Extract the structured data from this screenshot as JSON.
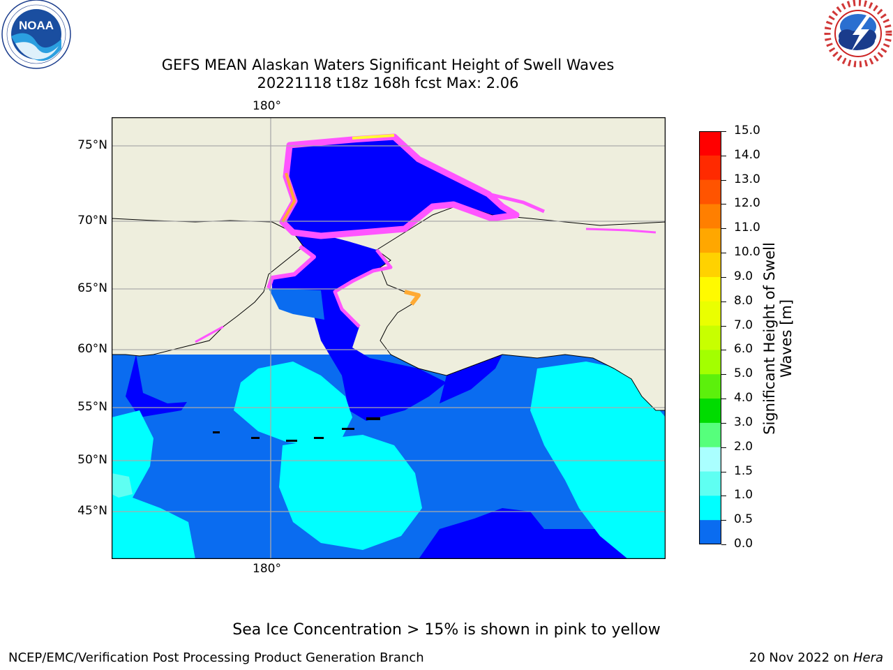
{
  "header": {
    "title_line1": "GEFS MEAN Alaskan Waters Significant Height of Swell Waves",
    "title_line2": "20221118 t18z 168h fcst   Max: 2.06"
  },
  "logos": {
    "noaa": {
      "text": "NOAA",
      "ring_text": "NATIONAL OCEANIC AND ATMOSPHERIC ADMINISTRATION · U.S. DEPARTMENT OF COMMERCE"
    },
    "nws": {
      "ring_text": "NATIONAL WEATHER SERVICE"
    }
  },
  "map": {
    "longitude_label": "180°",
    "latitude_labels": [
      {
        "text": "75°N",
        "value": 75
      },
      {
        "text": "70°N",
        "value": 70
      },
      {
        "text": "65°N",
        "value": 65
      },
      {
        "text": "60°N",
        "value": 60
      },
      {
        "text": "55°N",
        "value": 55
      },
      {
        "text": "50°N",
        "value": 50
      },
      {
        "text": "45°N",
        "value": 45
      }
    ],
    "colors": {
      "ocean_0_0.5": "#0000ff",
      "ocean_0.5_1.0": "#0a6cf0",
      "ocean_1.0_1.5": "#00ffff",
      "ocean_1.5_2.0": "#5ffff2",
      "land": "#eeeedd",
      "sea_ice_pink": "#ff55ff",
      "sea_ice_yellow": "#ffff33",
      "grid": "#aaaaaa"
    }
  },
  "colorbar": {
    "label": "Significant Height of Swell Waves [m]",
    "label_line1": "Significant Height of Swell",
    "label_line2": "Waves [m]",
    "ticks": [
      "15.0",
      "14.0",
      "13.0",
      "12.0",
      "11.0",
      "10.0",
      "9.0",
      "8.0",
      "7.0",
      "6.0",
      "5.0",
      "4.0",
      "3.0",
      "2.0",
      "1.5",
      "1.0",
      "0.5",
      "0.0"
    ],
    "colors": [
      "#ff0000",
      "#ff2a00",
      "#ff5400",
      "#ff7f00",
      "#ffa700",
      "#ffd200",
      "#fffa00",
      "#eaff00",
      "#c8ff00",
      "#a3ff00",
      "#5cf00c",
      "#00dc00",
      "#56ff7c",
      "#aaffff",
      "#5ffff2",
      "#00ffff",
      "#0a6cf0",
      "#0000ff"
    ]
  },
  "footer": {
    "note": "Sea Ice Concentration > 15% is shown in pink to yellow",
    "credit": "NCEP/EMC/Verification Post Processing Product Generation Branch",
    "date": "20 Nov 2022 on ",
    "host": "Hera"
  }
}
